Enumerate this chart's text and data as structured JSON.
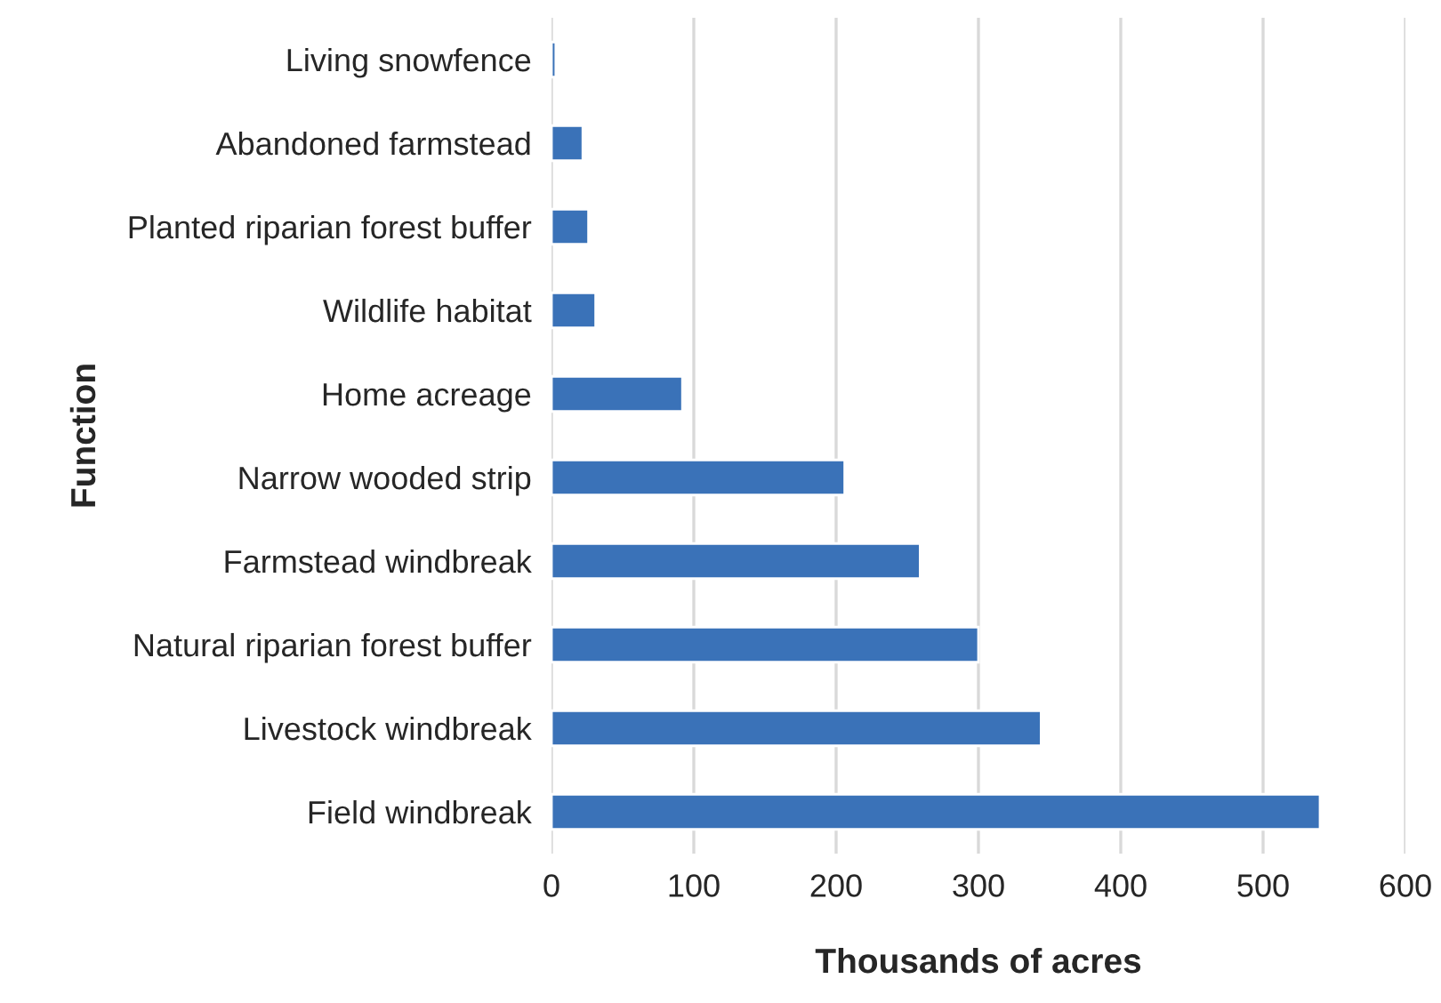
{
  "chart_data": {
    "type": "bar",
    "orientation": "horizontal",
    "xlabel": "Thousands of acres",
    "ylabel": "Function",
    "categories": [
      "Living snowfence",
      "Abandoned farmstead",
      "Planted riparian forest buffer",
      "Wildlife habitat",
      "Home acreage",
      "Narrow wooded strip",
      "Farmstead windbreak",
      "Natural riparian forest buffer",
      "Livestock windbreak",
      "Field windbreak"
    ],
    "values": [
      3,
      22,
      26,
      31,
      92,
      206,
      259,
      300,
      344,
      540
    ],
    "color": "#3a72b8",
    "xlim": [
      0,
      600
    ],
    "xticks": [
      0,
      100,
      200,
      300,
      400,
      500,
      600
    ],
    "grid": "x",
    "legend": false
  }
}
